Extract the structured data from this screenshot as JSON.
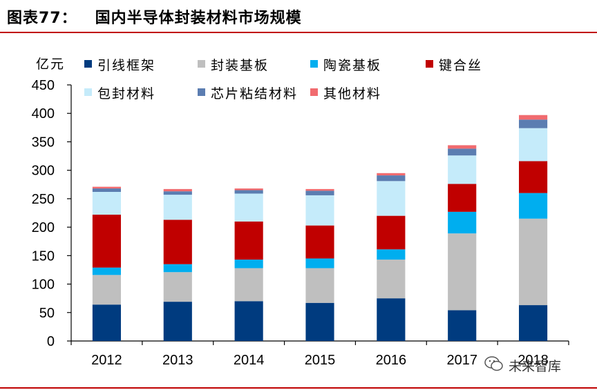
{
  "header": {
    "title": "图表77：   国内半导体封装材料市场规模"
  },
  "watermark": {
    "text": "未来智库",
    "icon": "wechat-icon"
  },
  "chart_data": {
    "type": "bar",
    "stacked": true,
    "title": "",
    "xlabel": "",
    "ylabel": "亿元",
    "ylim": [
      0,
      450
    ],
    "yticks": [
      0,
      50,
      100,
      150,
      200,
      250,
      300,
      350,
      400,
      450
    ],
    "categories": [
      "2012",
      "2013",
      "2014",
      "2015",
      "2016",
      "2017",
      "2018"
    ],
    "legend_position": "top",
    "grid": false,
    "series": [
      {
        "name": "引线框架",
        "color": "#003b7f",
        "values": [
          64,
          69,
          70,
          67,
          75,
          54,
          63
        ]
      },
      {
        "name": "封装基板",
        "color": "#bfbfbf",
        "values": [
          52,
          52,
          58,
          61,
          68,
          135,
          152
        ]
      },
      {
        "name": "陶瓷基板",
        "color": "#00aeef",
        "values": [
          13,
          14,
          15,
          17,
          18,
          38,
          45
        ]
      },
      {
        "name": "键合丝",
        "color": "#c00000",
        "values": [
          93,
          78,
          67,
          58,
          59,
          49,
          56
        ]
      },
      {
        "name": "包封材料",
        "color": "#c5ebfa",
        "values": [
          40,
          44,
          49,
          53,
          61,
          50,
          58
        ]
      },
      {
        "name": "芯片粘结材料",
        "color": "#5b7db1",
        "values": [
          6,
          6,
          6,
          8,
          10,
          12,
          15
        ]
      },
      {
        "name": "其他材料",
        "color": "#f16b6f",
        "values": [
          3,
          4,
          3,
          3,
          4,
          6,
          8
        ]
      }
    ]
  }
}
